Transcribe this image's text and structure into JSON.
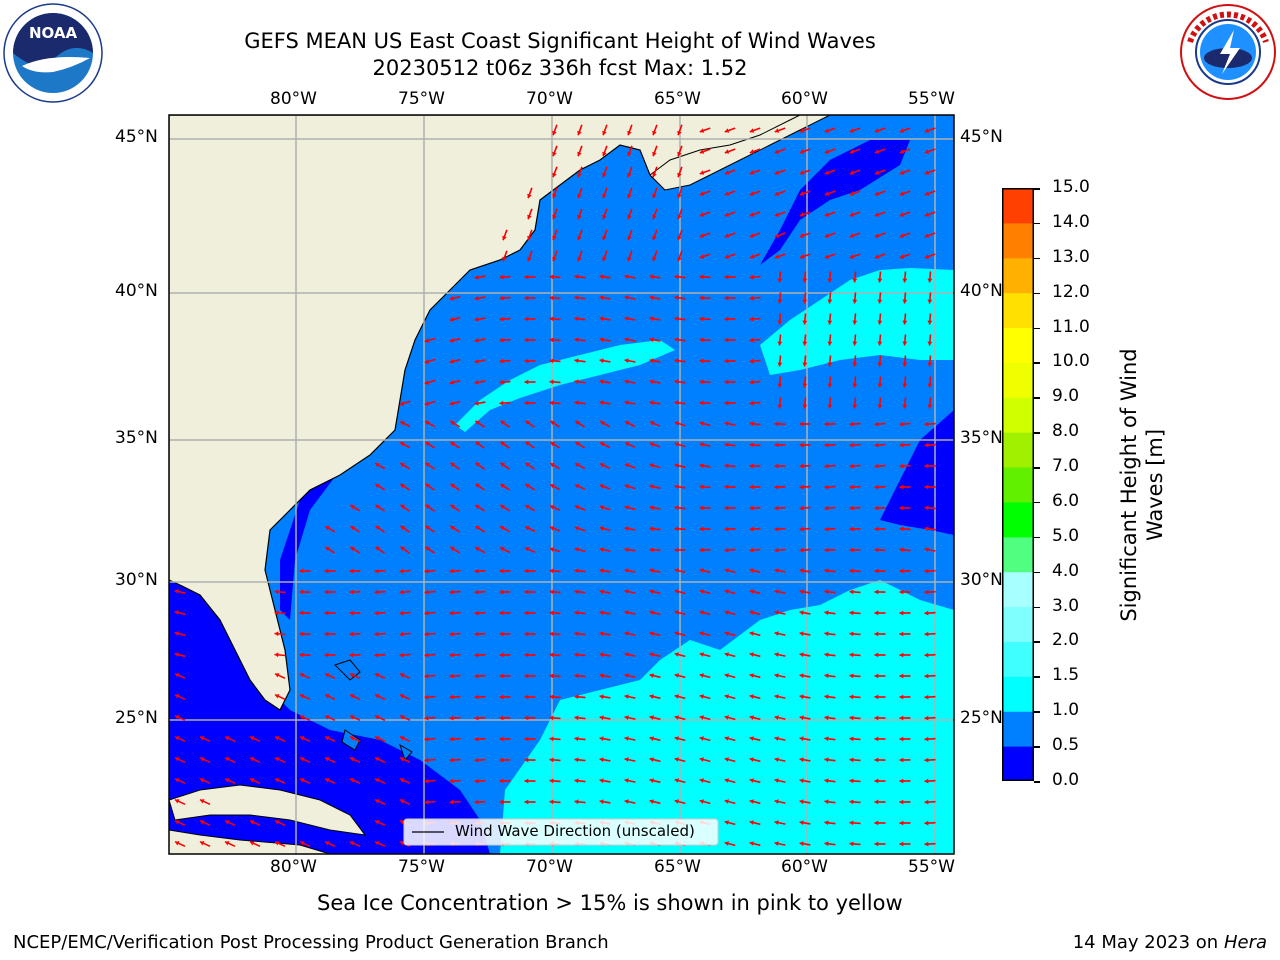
{
  "header": {
    "title_line1": "GEFS MEAN US East Coast Significant Height of Wind Waves",
    "title_line2": "20230512 t06z 336h fcst   Max: 1.52"
  },
  "logos": {
    "left": {
      "name": "noaa-logo",
      "text": "NOAA"
    },
    "right": {
      "name": "national-weather-service-logo",
      "text": "NATIONAL WEATHER SERVICE"
    }
  },
  "map": {
    "lon_ticks": [
      "80°W",
      "75°W",
      "70°W",
      "65°W",
      "60°W",
      "55°W"
    ],
    "lat_ticks": [
      "45°N",
      "40°N",
      "35°N",
      "30°N",
      "25°N"
    ],
    "legend_label": "Wind Wave Direction (unscaled)",
    "colors": {
      "land": "#efefdc",
      "sea_low": "#0000ff",
      "sea_mid": "#0080ff",
      "sea_high": "#00ffff",
      "arrows": "#ff0000",
      "grid": "#b0b0b0"
    }
  },
  "colorbar": {
    "label": "Significant Height of Wind Waves [m]",
    "label_line1": "Significant Height of Wind",
    "label_line2": "Waves [m]",
    "ticks": [
      "0.0",
      "0.5",
      "1.0",
      "1.5",
      "2.0",
      "3.0",
      "4.0",
      "5.0",
      "6.0",
      "7.0",
      "8.0",
      "9.0",
      "10.0",
      "11.0",
      "12.0",
      "13.0",
      "14.0",
      "15.0"
    ],
    "colors": [
      "#0000ff",
      "#0080ff",
      "#00ffff",
      "#40ffff",
      "#80ffff",
      "#a8ffff",
      "#50ff80",
      "#00ff00",
      "#60f000",
      "#a0f000",
      "#d0ff00",
      "#f0ff00",
      "#ffff00",
      "#ffe000",
      "#ffb000",
      "#ff8000",
      "#ff4000",
      "#ff0000"
    ]
  },
  "footer": {
    "note": "Sea Ice Concentration > 15% is shown in pink to yellow",
    "left": "NCEP/EMC/Verification Post Processing Product Generation Branch",
    "right_date": "14 May 2023 on",
    "right_machine": "Hera"
  }
}
